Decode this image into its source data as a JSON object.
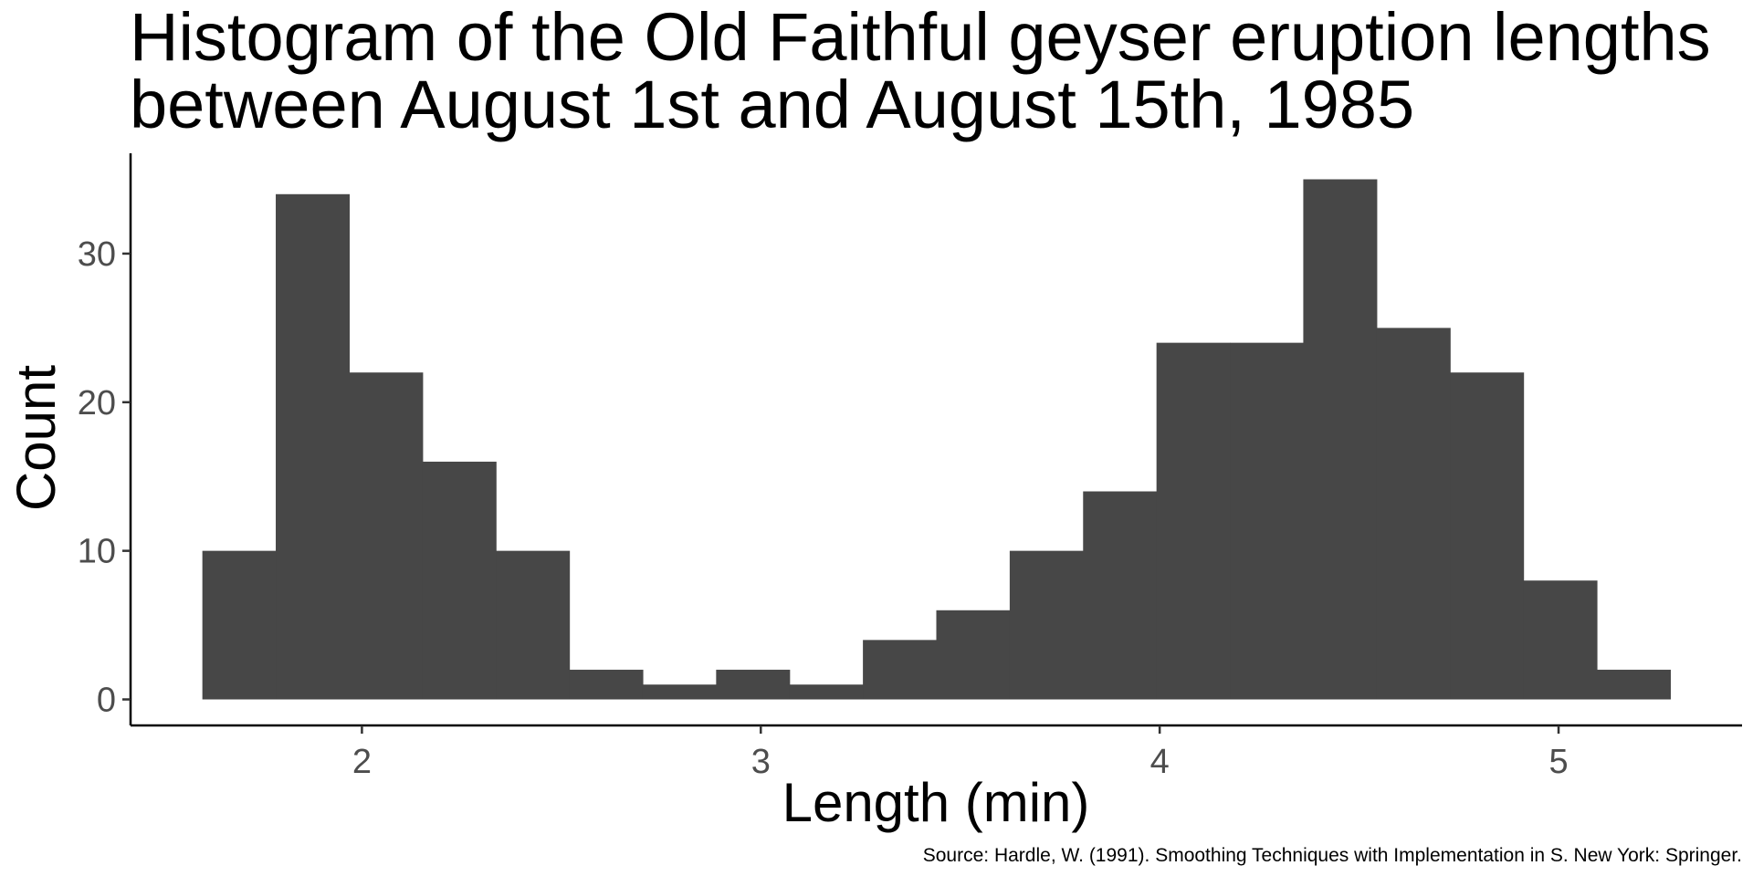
{
  "chart_data": {
    "type": "bar",
    "title": [
      "Histogram of the Old Faithful geyser eruption lengths",
      "between August 1st and August 15th, 1985"
    ],
    "xlabel": "Length (min)",
    "ylabel": "Count",
    "caption": "Source: Hardle, W. (1991). Smoothing Techniques with Implementation in S. New York: Springer.",
    "bin_edges": [
      1.6,
      1.784,
      1.968,
      2.152,
      2.336,
      2.52,
      2.704,
      2.888,
      3.072,
      3.256,
      3.44,
      3.624,
      3.808,
      3.992,
      4.176,
      4.36,
      4.544,
      4.728,
      4.912,
      5.096,
      5.28
    ],
    "counts": [
      10,
      34,
      22,
      16,
      10,
      2,
      1,
      2,
      1,
      4,
      6,
      10,
      14,
      24,
      24,
      35,
      25,
      22,
      8,
      2
    ],
    "xlim": [
      1.42,
      5.46
    ],
    "ylim": [
      -1.75,
      36.75
    ],
    "xticks": [
      2,
      3,
      4,
      5
    ],
    "xtick_labels": [
      "2",
      "3",
      "4",
      "5"
    ],
    "yticks": [
      0,
      10,
      20,
      30
    ],
    "ytick_labels": [
      "0",
      "10",
      "20",
      "30"
    ],
    "bar_color": "#474747",
    "grid": false,
    "legend": "none"
  }
}
